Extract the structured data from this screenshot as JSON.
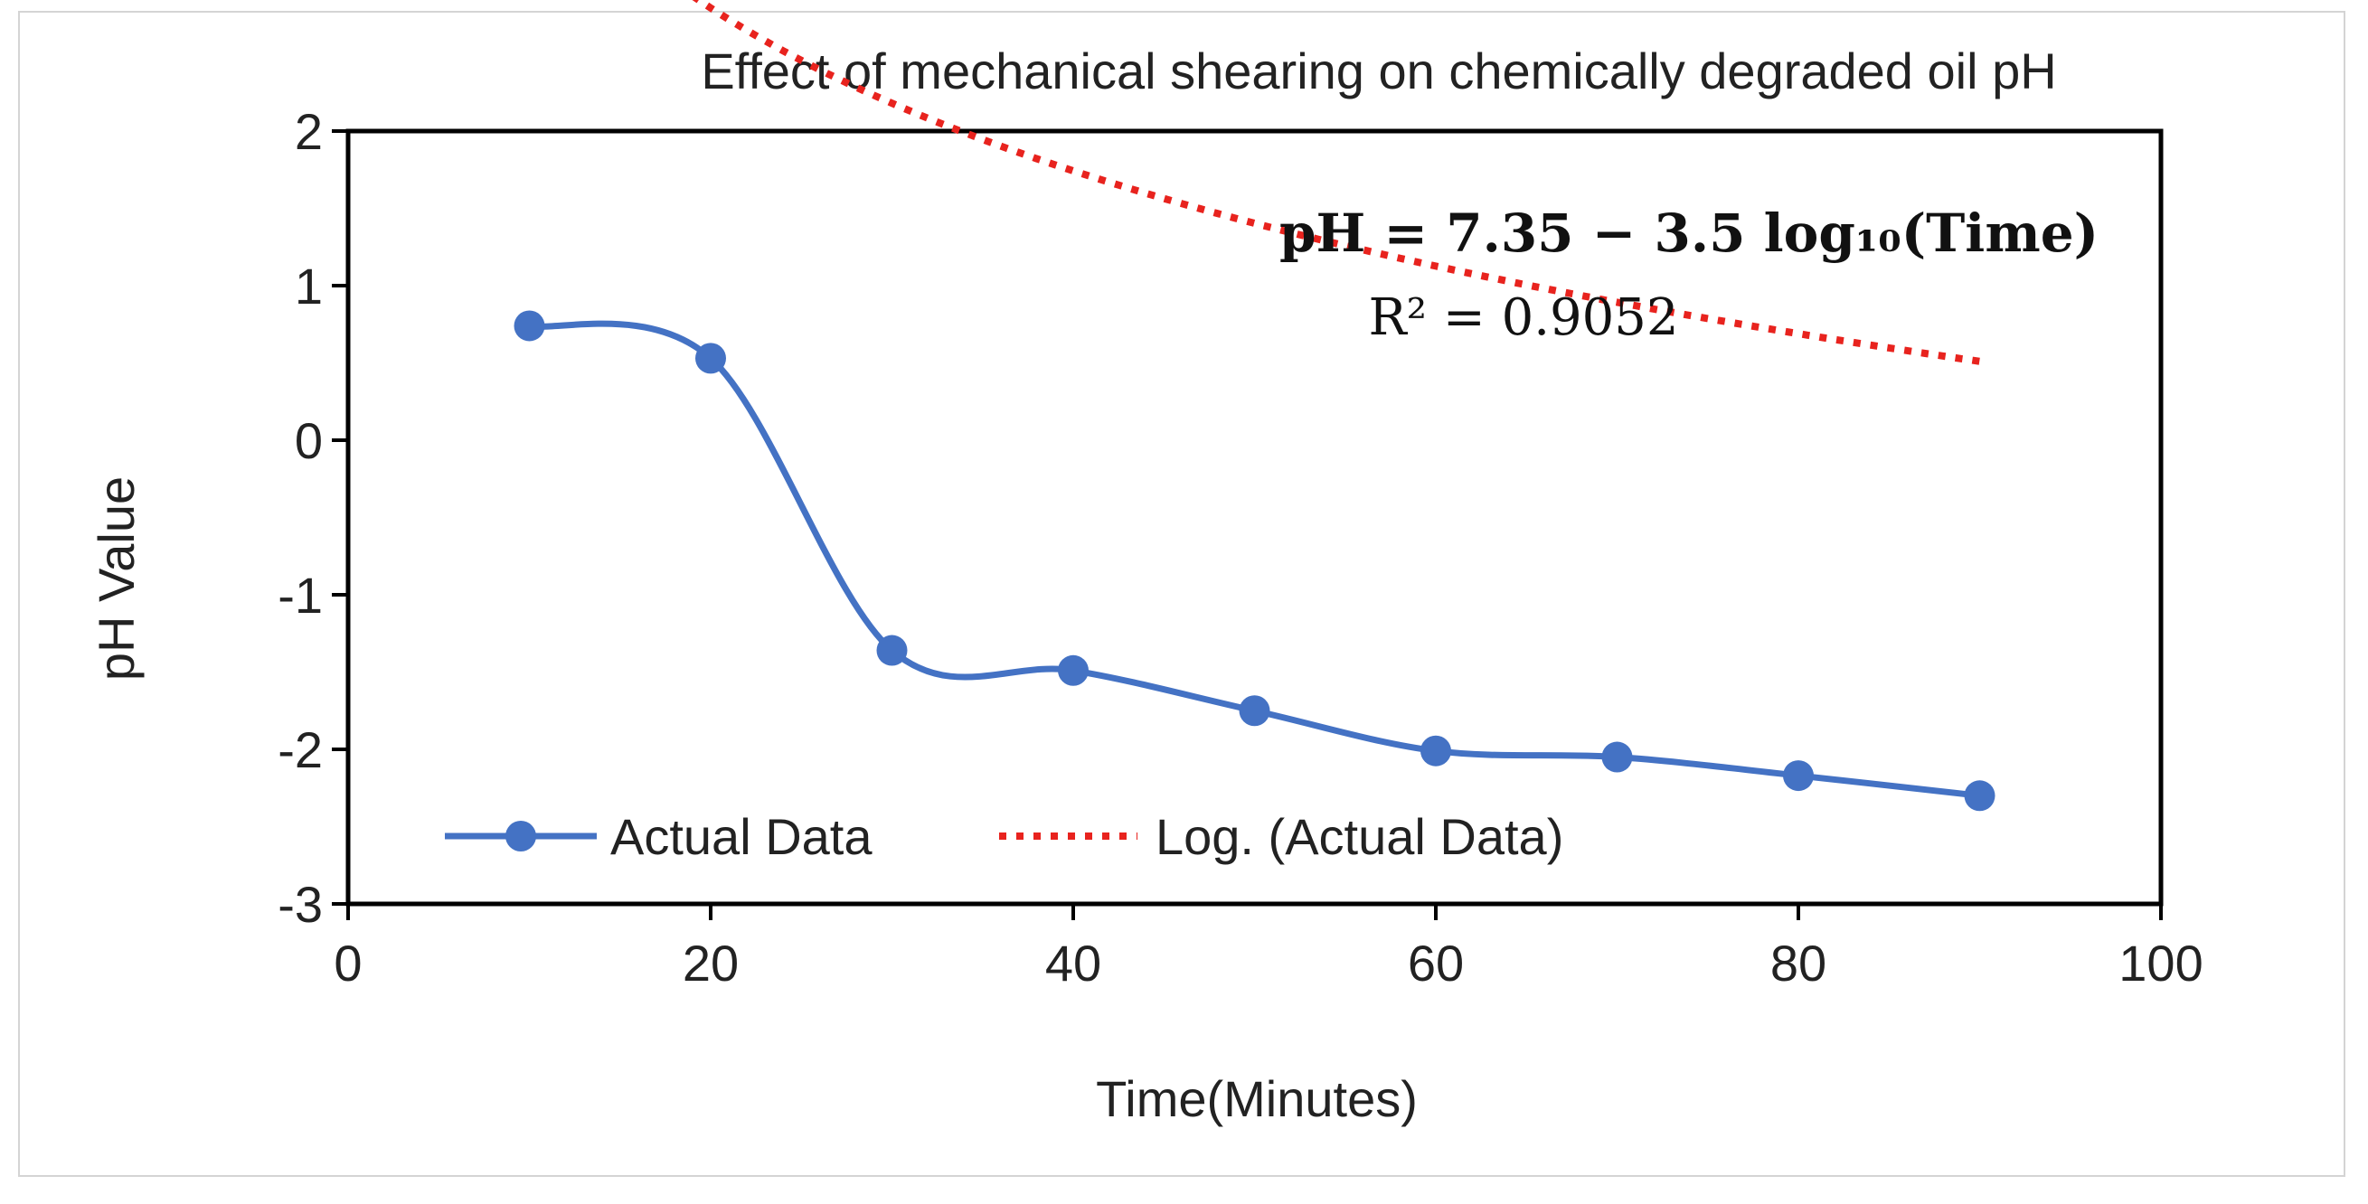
{
  "chart_data": {
    "type": "line",
    "title": "Effect of mechanical shearing on chemically degraded oil pH",
    "xlabel": "Time(Minutes)",
    "ylabel": "pH Value",
    "xlim": [
      0,
      100
    ],
    "ylim": [
      -3,
      2
    ],
    "x_ticks": [
      "0",
      "20",
      "40",
      "60",
      "80",
      "100"
    ],
    "y_ticks": [
      "2",
      "1",
      "0",
      "-1",
      "-2",
      "-3"
    ],
    "x_tick_values": [
      0,
      20,
      40,
      60,
      80,
      100
    ],
    "y_tick_values": [
      2,
      1,
      0,
      -1,
      -2,
      -3
    ],
    "grid": false,
    "legend_position": "bottom-left",
    "series": [
      {
        "name": "Actual Data",
        "style": "smooth-line-markers",
        "color": "#4472C4",
        "x": [
          10,
          20,
          30,
          40,
          50,
          60,
          70,
          80,
          90
        ],
        "values": [
          0.74,
          0.53,
          -1.36,
          -1.49,
          -1.75,
          -2.01,
          -2.05,
          -2.17,
          -2.3
        ]
      },
      {
        "name": "Log. (Actual Data)",
        "style": "dotted-trendline",
        "color": "#E8231E",
        "formula": {
          "a": 7.35,
          "b": -3.5,
          "base": 10
        },
        "x_range": [
          10,
          90
        ]
      }
    ],
    "annotations": {
      "equation": "pH = 7.35 − 3.5 log₁₀(Time)",
      "r_squared": "R² = 0.9052"
    }
  }
}
